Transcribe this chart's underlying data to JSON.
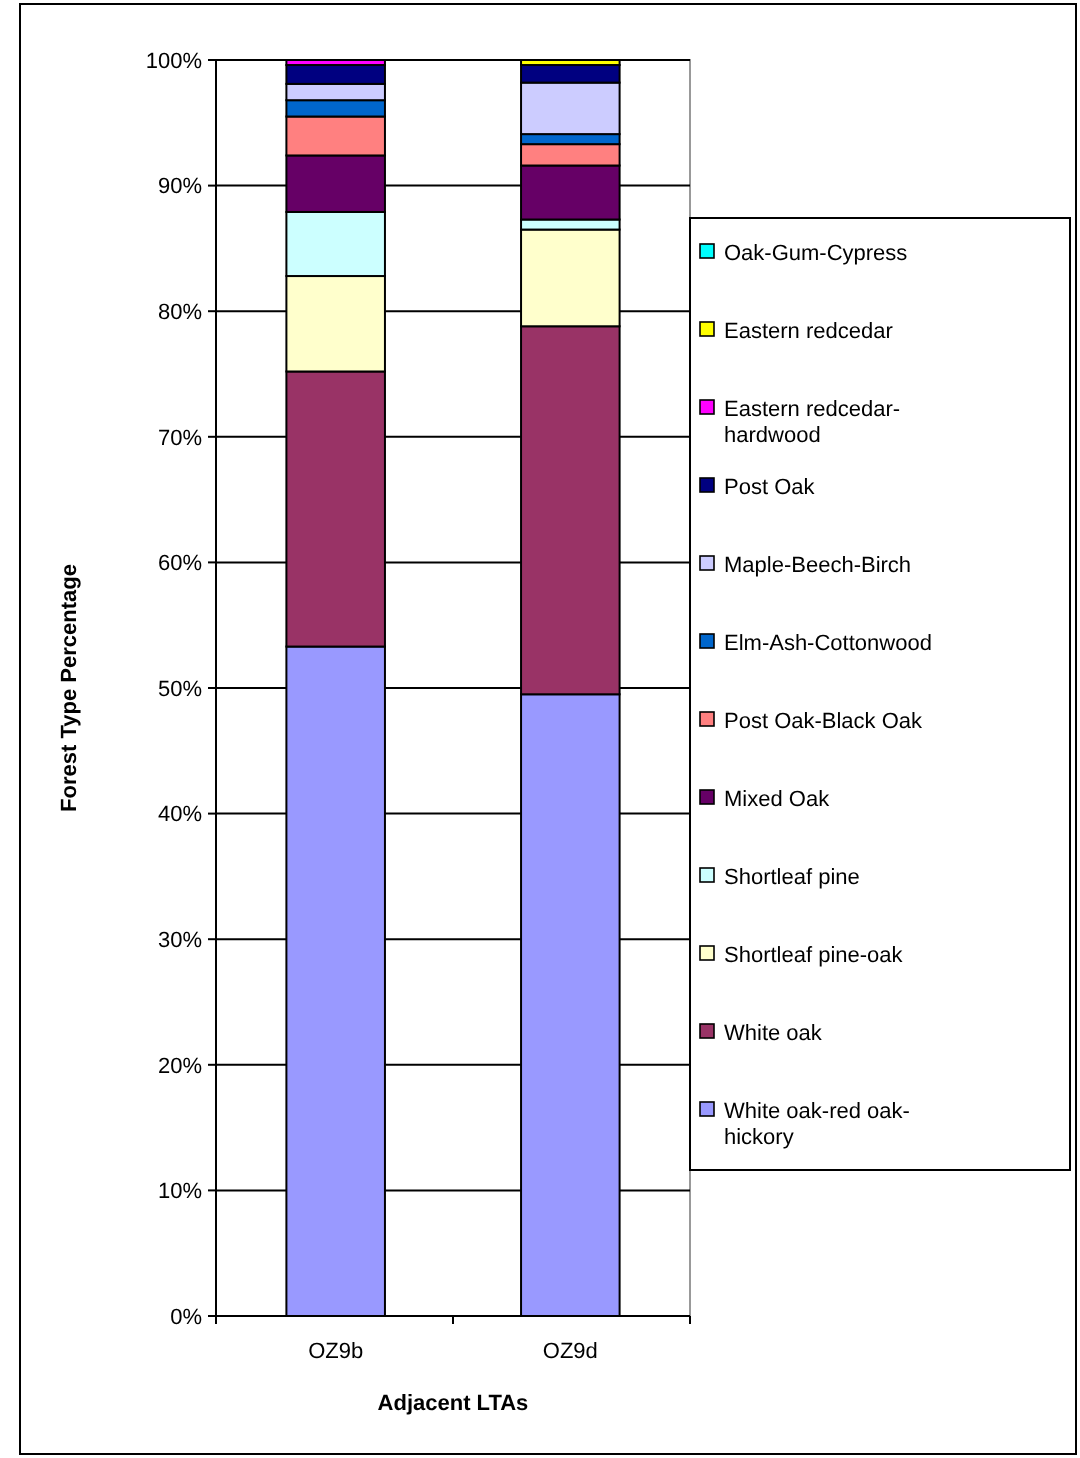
{
  "chart_data": {
    "type": "bar",
    "stacked": true,
    "xlabel": "Adjacent LTAs",
    "ylabel": "Forest Type Percentage",
    "categories": [
      "OZ9b",
      "OZ9d"
    ],
    "ylim": [
      0,
      100
    ],
    "yticks": [
      {
        "value": 0,
        "label": "0%"
      },
      {
        "value": 10,
        "label": "10%"
      },
      {
        "value": 20,
        "label": "20%"
      },
      {
        "value": 30,
        "label": "30%"
      },
      {
        "value": 40,
        "label": "40%"
      },
      {
        "value": 50,
        "label": "50%"
      },
      {
        "value": 60,
        "label": "60%"
      },
      {
        "value": 70,
        "label": "70%"
      },
      {
        "value": 80,
        "label": "80%"
      },
      {
        "value": 90,
        "label": "90%"
      },
      {
        "value": 100,
        "label": "100%"
      }
    ],
    "grid": "y",
    "legend": "right",
    "series": [
      {
        "name": "White oak-red oak-hickory",
        "color": "#9999ff",
        "values": [
          53.3,
          49.5
        ]
      },
      {
        "name": "White oak",
        "color": "#993366",
        "values": [
          21.9,
          29.3
        ]
      },
      {
        "name": "Shortleaf pine-oak",
        "color": "#ffffcc",
        "values": [
          7.6,
          7.7
        ]
      },
      {
        "name": "Shortleaf pine",
        "color": "#ccffff",
        "values": [
          5.1,
          0.8
        ]
      },
      {
        "name": "Mixed Oak",
        "color": "#660066",
        "values": [
          4.5,
          4.3
        ]
      },
      {
        "name": "Post Oak-Black Oak",
        "color": "#ff8080",
        "values": [
          3.1,
          1.7
        ]
      },
      {
        "name": "Elm-Ash-Cottonwood",
        "color": "#0066cc",
        "values": [
          1.3,
          0.8
        ]
      },
      {
        "name": "Maple-Beech-Birch",
        "color": "#ccccff",
        "values": [
          1.3,
          4.1
        ]
      },
      {
        "name": "Post Oak",
        "color": "#000080",
        "values": [
          1.5,
          1.4
        ]
      },
      {
        "name": "Eastern redcedar-hardwood",
        "color": "#ff00ff",
        "values": [
          0.4,
          0
        ]
      },
      {
        "name": "Eastern redcedar",
        "color": "#ffff00",
        "values": [
          0,
          0.4
        ]
      },
      {
        "name": "Oak-Gum-Cypress",
        "color": "#00ffff",
        "values": [
          0,
          0
        ]
      }
    ]
  }
}
